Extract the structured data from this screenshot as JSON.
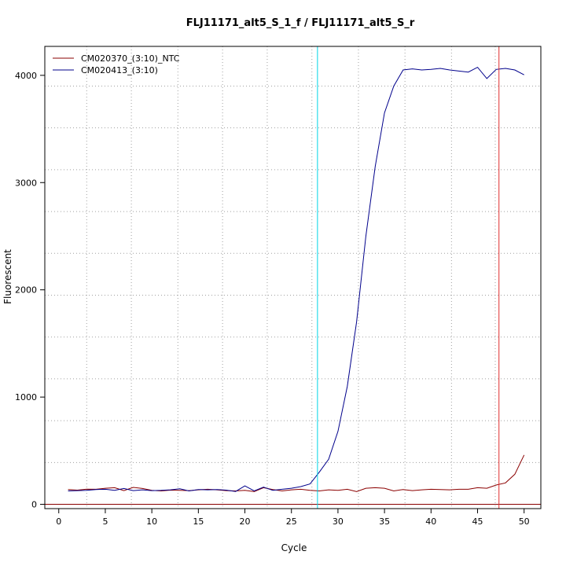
{
  "chart_data": {
    "type": "line",
    "title": "FLJ11171_alt5_S_1_f / FLJ11171_alt5_S_r",
    "xlabel": "Cycle",
    "ylabel": "Fluorescent",
    "xlim": [
      -1.5,
      51.8
    ],
    "ylim": [
      -40,
      4270
    ],
    "x_ticks": [
      0,
      5,
      10,
      15,
      20,
      25,
      30,
      35,
      40,
      45,
      50
    ],
    "y_ticks": [
      0,
      1000,
      2000,
      3000,
      4000
    ],
    "x_grid": [
      3,
      7.8,
      12.8,
      17.6,
      22.4,
      27.2,
      32.2,
      37.2,
      42.2,
      46.9
    ],
    "y_grid": [
      390,
      780,
      1170,
      1560,
      1950,
      2340,
      2730,
      3120,
      3510,
      3900
    ],
    "grid": true,
    "legend_position": "top-left",
    "colors": {
      "ntc": "#8b0000",
      "sample": "#00008b",
      "threshold": "#8b0000",
      "vline_cyan": "#00d4e6",
      "vline_red": "#e03030",
      "grid": "#a0a0a0"
    },
    "hline_y": 0,
    "vlines": [
      27.8,
      47.3
    ],
    "x": [
      1,
      2,
      3,
      4,
      5,
      6,
      7,
      8,
      9,
      10,
      11,
      12,
      13,
      14,
      15,
      16,
      17,
      18,
      19,
      20,
      21,
      22,
      23,
      24,
      25,
      26,
      27,
      28,
      29,
      30,
      31,
      32,
      33,
      34,
      35,
      36,
      37,
      38,
      39,
      40,
      41,
      42,
      43,
      44,
      45,
      46,
      47,
      48,
      49,
      50
    ],
    "series": [
      {
        "name": "CM020370_(3:10)_NTC",
        "color": "#8b0000",
        "values": [
          138,
          132,
          142,
          140,
          150,
          155,
          128,
          158,
          148,
          130,
          125,
          132,
          130,
          128,
          135,
          140,
          135,
          128,
          125,
          130,
          118,
          155,
          138,
          125,
          135,
          140,
          130,
          125,
          135,
          130,
          140,
          118,
          150,
          155,
          150,
          125,
          138,
          128,
          135,
          140,
          138,
          135,
          140,
          140,
          155,
          150,
          180,
          200,
          280,
          460
        ]
      },
      {
        "name": "CM020413_(3:10)",
        "color": "#00008b",
        "values": [
          125,
          128,
          130,
          138,
          140,
          130,
          148,
          128,
          135,
          128,
          130,
          135,
          145,
          125,
          138,
          135,
          138,
          132,
          120,
          172,
          125,
          160,
          130,
          140,
          150,
          165,
          190,
          300,
          420,
          680,
          1100,
          1700,
          2500,
          3150,
          3650,
          3900,
          4050,
          4060,
          4050,
          4055,
          4065,
          4050,
          4040,
          4030,
          4075,
          3970,
          4055,
          4065,
          4050,
          4005
        ]
      }
    ]
  }
}
